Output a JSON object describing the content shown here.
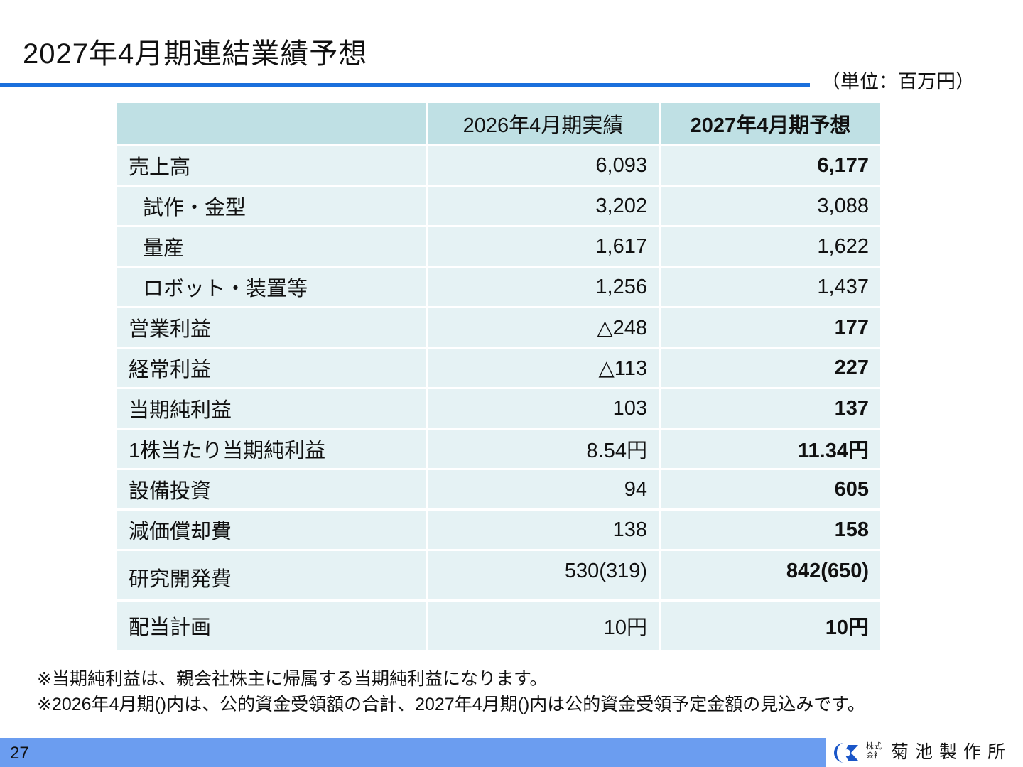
{
  "title": "2027年4月期連結業績予想",
  "unit": "（単位：百万円）",
  "table": {
    "headers": [
      "",
      "2026年4月期実績",
      "2027年4月期予想"
    ],
    "rows": [
      {
        "label": "売上高",
        "v1": "6,093",
        "v2": "6,177"
      },
      {
        "label": "試作・金型",
        "v1": "3,202",
        "v2": "3,088"
      },
      {
        "label": "量産",
        "v1": "1,617",
        "v2": "1,622"
      },
      {
        "label": "ロボット・装置等",
        "v1": "1,256",
        "v2": "1,437"
      },
      {
        "label": "営業利益",
        "v1": "△248",
        "v2": "177"
      },
      {
        "label": "経常利益",
        "v1": "△113",
        "v2": "227"
      },
      {
        "label": "当期純利益",
        "v1": "103",
        "v2": "137"
      },
      {
        "label": "1株当たり当期純利益",
        "v1": "8.54円",
        "v2": "11.34円"
      },
      {
        "label": "設備投資",
        "v1": "94",
        "v2": "605"
      },
      {
        "label": "減価償却費",
        "v1": "138",
        "v2": "158"
      },
      {
        "label": "研究開発費",
        "v1": "530(319)",
        "v2": "842(650)"
      },
      {
        "label": "配当計画",
        "v1": "10円",
        "v2": "10円"
      }
    ]
  },
  "notes": [
    "※当期純利益は、親会社株主に帰属する当期純利益になります。",
    "※2026年4月期()内は、公的資金受領額の合計、2027年4月期()内は公的資金受領予定金額の見込みです。"
  ],
  "footer": {
    "page_number": "27",
    "company_prefix_line1": "株式",
    "company_prefix_line2": "会社",
    "company_name": "菊池製作所",
    "footer_color": "#6b9df0",
    "rule_color": "#1a6fdc"
  }
}
